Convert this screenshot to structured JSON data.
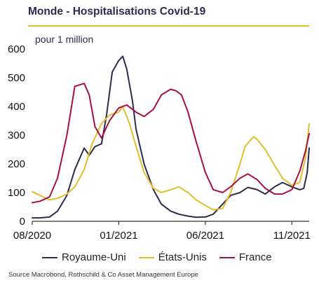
{
  "header": {
    "title": "Monde - Hospitalisations Covid-19",
    "unit": "pour 1 million",
    "rule_color": "#e2bd2b"
  },
  "source": "Source Macrobond, Rothschild & Co Asset Management Europe",
  "chart_data": {
    "type": "line",
    "title": "Monde - Hospitalisations Covid-19",
    "subtitle": "pour 1 million",
    "xlabel": "",
    "ylabel": "",
    "x_range": [
      "2020-08",
      "2021-12"
    ],
    "ylim": [
      0,
      600
    ],
    "y_ticks": [
      0,
      100,
      200,
      300,
      400,
      500,
      600
    ],
    "x_ticks": [
      {
        "label": "08/2020",
        "x": "2020-08"
      },
      {
        "label": "01/2021",
        "x": "2021-01"
      },
      {
        "label": "06/2021",
        "x": "2021-06"
      },
      {
        "label": "11/2021",
        "x": "2021-11"
      }
    ],
    "grid": false,
    "legend": "bottom",
    "series": [
      {
        "name": "Royaume-Uni",
        "color": "#2e2a4f",
        "x": [
          "2020-08",
          "2020-08-15",
          "2020-09",
          "2020-09-15",
          "2020-10",
          "2020-10-15",
          "2020-11",
          "2020-11-10",
          "2020-11-20",
          "2020-12",
          "2020-12-10",
          "2020-12-20",
          "2021-01",
          "2021-01-08",
          "2021-01-15",
          "2021-01-25",
          "2021-02",
          "2021-02-15",
          "2021-03",
          "2021-03-15",
          "2021-04",
          "2021-04-15",
          "2021-05",
          "2021-05-15",
          "2021-06",
          "2021-06-15",
          "2021-07",
          "2021-07-15",
          "2021-08",
          "2021-08-15",
          "2021-09",
          "2021-09-15",
          "2021-10",
          "2021-10-15",
          "2021-11",
          "2021-11-15",
          "2021-11-22",
          "2021-11-28",
          "2021-12"
        ],
        "values": [
          12,
          12,
          15,
          35,
          90,
          180,
          255,
          230,
          260,
          270,
          370,
          520,
          560,
          575,
          530,
          420,
          320,
          200,
          110,
          60,
          35,
          25,
          18,
          14,
          15,
          25,
          60,
          90,
          100,
          118,
          110,
          95,
          120,
          135,
          120,
          110,
          115,
          170,
          255
        ]
      },
      {
        "name": "États-Unis",
        "color": "#e2bd2b",
        "x": [
          "2020-08",
          "2020-08-15",
          "2020-09",
          "2020-09-15",
          "2020-10",
          "2020-10-15",
          "2020-11",
          "2020-11-15",
          "2020-12",
          "2020-12-15",
          "2021-01",
          "2021-01-08",
          "2021-01-20",
          "2021-02",
          "2021-02-15",
          "2021-03",
          "2021-03-15",
          "2021-04",
          "2021-04-15",
          "2021-05",
          "2021-05-15",
          "2021-06",
          "2021-06-15",
          "2021-07",
          "2021-07-15",
          "2021-08",
          "2021-08-10",
          "2021-08-25",
          "2021-09",
          "2021-09-15",
          "2021-10",
          "2021-10-15",
          "2021-11",
          "2021-11-15",
          "2021-11-25",
          "2021-12"
        ],
        "values": [
          103,
          90,
          75,
          80,
          95,
          120,
          180,
          270,
          340,
          370,
          380,
          400,
          340,
          260,
          170,
          115,
          100,
          110,
          120,
          100,
          75,
          55,
          40,
          45,
          100,
          200,
          260,
          295,
          285,
          250,
          195,
          150,
          125,
          135,
          220,
          340
        ]
      },
      {
        "name": "France",
        "color": "#a8113d",
        "x": [
          "2020-08",
          "2020-08-15",
          "2020-09",
          "2020-09-15",
          "2020-10",
          "2020-10-15",
          "2020-11",
          "2020-11-10",
          "2020-11-20",
          "2020-12",
          "2020-12-15",
          "2021-01",
          "2021-01-15",
          "2021-02",
          "2021-02-15",
          "2021-03",
          "2021-03-15",
          "2021-04",
          "2021-04-10",
          "2021-04-20",
          "2021-05",
          "2021-05-15",
          "2021-06",
          "2021-06-15",
          "2021-07",
          "2021-07-15",
          "2021-08",
          "2021-08-15",
          "2021-09",
          "2021-09-15",
          "2021-10",
          "2021-10-15",
          "2021-11",
          "2021-11-15",
          "2021-11-25",
          "2021-12"
        ],
        "values": [
          65,
          70,
          85,
          150,
          300,
          470,
          480,
          440,
          330,
          290,
          350,
          395,
          405,
          380,
          365,
          390,
          440,
          460,
          455,
          440,
          380,
          280,
          170,
          110,
          100,
          120,
          150,
          165,
          145,
          115,
          95,
          95,
          110,
          175,
          245,
          305
        ]
      }
    ]
  }
}
